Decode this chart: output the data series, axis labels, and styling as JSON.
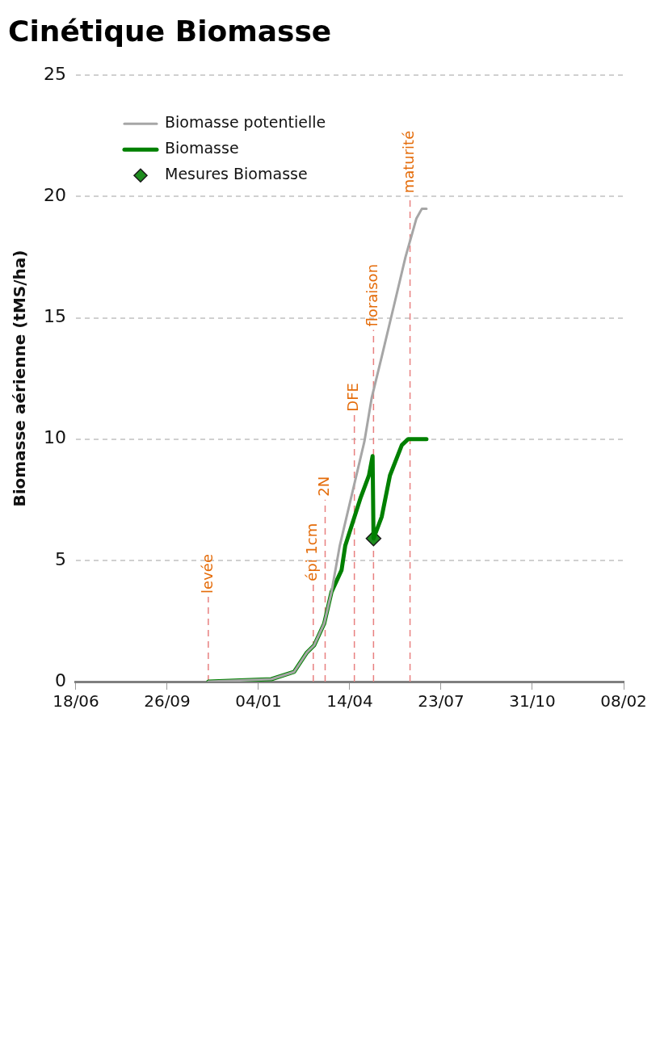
{
  "chart_data": {
    "type": "line",
    "title": "Cinétique Biomasse",
    "ylabel": "Biomasse aérienne (tMS/ha)",
    "xlim": [
      "2009-06-18",
      "2011-02-08"
    ],
    "xticks": [
      {
        "value": "2009-06-18",
        "label": "18/06"
      },
      {
        "value": "2009-09-26",
        "label": "26/09"
      },
      {
        "value": "2010-01-04",
        "label": "04/01"
      },
      {
        "value": "2010-04-14",
        "label": "14/04"
      },
      {
        "value": "2010-07-23",
        "label": "23/07"
      },
      {
        "value": "2010-10-31",
        "label": "31/10"
      },
      {
        "value": "2011-02-08",
        "label": "08/02"
      }
    ],
    "ylim": [
      0,
      25
    ],
    "yticks": [
      0,
      5,
      10,
      15,
      20,
      25
    ],
    "grid": "y",
    "legend": "top left",
    "series": [
      {
        "type": "line",
        "name": "Biomasse potentielle",
        "color": "#a6a6a6",
        "marker": "none",
        "x": [
          "2009-11-10",
          "2010-01-18",
          "2010-02-12",
          "2010-02-26",
          "2010-03-06",
          "2010-03-17",
          "2010-03-25",
          "2010-04-03",
          "2010-04-30",
          "2010-05-08",
          "2010-05-19",
          "2010-06-02",
          "2010-06-14",
          "2010-06-26",
          "2010-07-02",
          "2010-07-07"
        ],
        "values": [
          0,
          0.1,
          0.4,
          1.2,
          1.5,
          2.4,
          3.7,
          5.6,
          9.9,
          11.7,
          13.4,
          15.6,
          17.5,
          19.1,
          19.5,
          19.5
        ]
      },
      {
        "type": "line",
        "name": "Biomasse",
        "color": "#008000",
        "marker": "none",
        "x": [
          "2009-11-10",
          "2010-01-18",
          "2010-02-12",
          "2010-02-26",
          "2010-03-06",
          "2010-03-17",
          "2010-03-25",
          "2010-04-05",
          "2010-04-09",
          "2010-04-26",
          "2010-05-05",
          "2010-05-09",
          "2010-05-10",
          "2010-05-19",
          "2010-05-28",
          "2010-06-10",
          "2010-06-17",
          "2010-07-07"
        ],
        "values": [
          0,
          0.1,
          0.4,
          1.2,
          1.5,
          2.4,
          3.7,
          4.6,
          5.6,
          7.6,
          8.5,
          9.3,
          5.9,
          6.8,
          8.5,
          9.75,
          10,
          10
        ]
      },
      {
        "type": "scatter",
        "name": "Mesures Biomasse",
        "color": "#1e8c1e",
        "marker": "diamond",
        "x": [
          "2010-05-10"
        ],
        "values": [
          5.9
        ]
      }
    ],
    "ref_lines": [
      {
        "axis": "x",
        "value": "2009-11-10",
        "label": "levée",
        "color": "#e88080",
        "line_style": "dashed"
      },
      {
        "axis": "x",
        "value": "2010-03-05",
        "label": "épi 1cm",
        "color": "#e88080",
        "line_style": "dashed"
      },
      {
        "axis": "x",
        "value": "2010-03-18",
        "label": "2N",
        "color": "#e88080",
        "line_style": "dashed"
      },
      {
        "axis": "x",
        "value": "2010-04-19",
        "label": "DFE",
        "color": "#e88080",
        "line_style": "dashed"
      },
      {
        "axis": "x",
        "value": "2010-05-10",
        "label": "floraison",
        "color": "#e88080",
        "line_style": "dashed"
      },
      {
        "axis": "x",
        "value": "2010-06-19",
        "label": "maturité",
        "color": "#e88080",
        "line_style": "dashed"
      }
    ]
  }
}
